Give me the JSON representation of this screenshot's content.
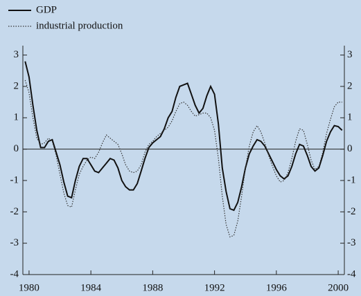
{
  "chart_data": {
    "type": "line",
    "x": [
      1979.75,
      1980,
      1980.25,
      1980.5,
      1980.75,
      1981,
      1981.25,
      1981.5,
      1981.75,
      1982,
      1982.25,
      1982.5,
      1982.75,
      1983,
      1983.25,
      1983.5,
      1983.75,
      1984,
      1984.25,
      1984.5,
      1984.75,
      1985,
      1985.25,
      1985.5,
      1985.75,
      1986,
      1986.25,
      1986.5,
      1986.75,
      1987,
      1987.25,
      1987.5,
      1987.75,
      1988,
      1988.25,
      1988.5,
      1988.75,
      1989,
      1989.25,
      1989.5,
      1989.75,
      1990,
      1990.25,
      1990.5,
      1990.75,
      1991,
      1991.25,
      1991.5,
      1991.75,
      1992,
      1992.25,
      1992.5,
      1992.75,
      1993,
      1993.25,
      1993.5,
      1993.75,
      1994,
      1994.25,
      1994.5,
      1994.75,
      1995,
      1995.25,
      1995.5,
      1995.75,
      1996,
      1996.25,
      1996.5,
      1996.75,
      1997,
      1997.25,
      1997.5,
      1997.75,
      1998,
      1998.25,
      1998.5,
      1998.75,
      1999,
      1999.25,
      1999.5,
      1999.75,
      2000,
      2000.25
    ],
    "series": [
      {
        "name": "GDP",
        "color": "#111111",
        "style": "solid",
        "values": [
          2.8,
          2.3,
          1.4,
          0.6,
          0.05,
          0.05,
          0.25,
          0.3,
          -0.1,
          -0.5,
          -1.05,
          -1.5,
          -1.55,
          -1.0,
          -0.55,
          -0.3,
          -0.3,
          -0.5,
          -0.7,
          -0.75,
          -0.6,
          -0.45,
          -0.3,
          -0.35,
          -0.6,
          -1.0,
          -1.2,
          -1.3,
          -1.3,
          -1.1,
          -0.7,
          -0.3,
          0.05,
          0.2,
          0.3,
          0.4,
          0.65,
          1.0,
          1.2,
          1.65,
          2.0,
          2.05,
          2.1,
          1.75,
          1.4,
          1.15,
          1.3,
          1.7,
          2.0,
          1.75,
          0.8,
          -0.6,
          -1.35,
          -1.9,
          -1.95,
          -1.7,
          -1.2,
          -0.6,
          -0.15,
          0.1,
          0.3,
          0.25,
          0.1,
          -0.15,
          -0.4,
          -0.65,
          -0.85,
          -0.95,
          -0.85,
          -0.55,
          -0.15,
          0.15,
          0.1,
          -0.2,
          -0.55,
          -0.7,
          -0.6,
          -0.2,
          0.25,
          0.55,
          0.75,
          0.72,
          0.6
        ]
      },
      {
        "name": "industrial production",
        "color": "#333333",
        "style": "dotted",
        "values": [
          2.2,
          1.8,
          1.0,
          0.35,
          0.15,
          0.2,
          0.35,
          0.25,
          -0.2,
          -0.8,
          -1.4,
          -1.8,
          -1.85,
          -1.3,
          -0.8,
          -0.55,
          -0.35,
          -0.25,
          -0.3,
          -0.1,
          0.2,
          0.45,
          0.35,
          0.25,
          0.15,
          -0.15,
          -0.5,
          -0.7,
          -0.75,
          -0.7,
          -0.5,
          -0.1,
          0.15,
          0.25,
          0.4,
          0.5,
          0.6,
          0.7,
          0.9,
          1.2,
          1.45,
          1.5,
          1.4,
          1.2,
          1.05,
          1.1,
          1.15,
          1.15,
          1.0,
          0.6,
          -0.3,
          -1.5,
          -2.4,
          -2.8,
          -2.75,
          -2.3,
          -1.5,
          -0.6,
          0.1,
          0.55,
          0.75,
          0.55,
          0.2,
          -0.2,
          -0.55,
          -0.85,
          -1.05,
          -1.0,
          -0.75,
          -0.3,
          0.25,
          0.65,
          0.6,
          0.15,
          -0.35,
          -0.65,
          -0.55,
          -0.1,
          0.5,
          0.95,
          1.35,
          1.5,
          1.5
        ]
      }
    ],
    "xlim": [
      1979.6,
      2000.4
    ],
    "xticks": [
      1980,
      1984,
      1988,
      1992,
      1996,
      2000
    ],
    "ylim": [
      -4,
      3.3
    ],
    "yticks": [
      -4,
      -3,
      -2,
      -1,
      0,
      1,
      2,
      3
    ],
    "right_axis_labels": true,
    "zero_line": true,
    "legend": "top-left"
  }
}
